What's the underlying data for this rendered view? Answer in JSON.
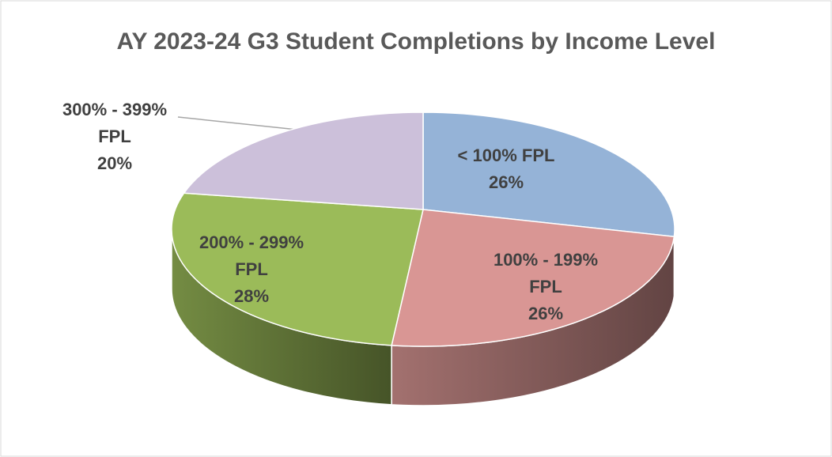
{
  "chart_data": {
    "type": "pie3d",
    "title": "AY 2023-24 G3 Student Completions by Income Level",
    "categories": [
      "< 100% FPL",
      "100% - 199% FPL",
      "200% - 299% FPL",
      "300% - 399% FPL"
    ],
    "values": [
      26,
      26,
      28,
      20
    ],
    "value_labels": [
      "26%",
      "26%",
      "28%",
      "20%"
    ],
    "colors": [
      "#95b3d7",
      "#d99694",
      "#9bbb59",
      "#ccc0da"
    ]
  }
}
